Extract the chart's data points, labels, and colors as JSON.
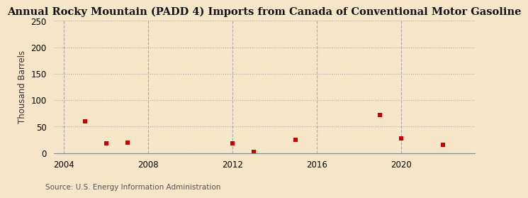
{
  "title": "Annual Rocky Mountain (PADD 4) Imports from Canada of Conventional Motor Gasoline",
  "ylabel": "Thousand Barrels",
  "source": "Source: U.S. Energy Information Administration",
  "background_color": "#f5e6c8",
  "plot_bg_color": "#f5e6c8",
  "data_points": [
    {
      "year": 2005,
      "value": 60
    },
    {
      "year": 2006,
      "value": 18
    },
    {
      "year": 2007,
      "value": 20
    },
    {
      "year": 2012,
      "value": 18
    },
    {
      "year": 2013,
      "value": 2
    },
    {
      "year": 2015,
      "value": 25
    },
    {
      "year": 2019,
      "value": 72
    },
    {
      "year": 2020,
      "value": 27
    },
    {
      "year": 2022,
      "value": 15
    }
  ],
  "marker_color": "#cc0000",
  "marker_size": 4,
  "xlim": [
    2003.5,
    2023.5
  ],
  "ylim": [
    0,
    250
  ],
  "yticks": [
    0,
    50,
    100,
    150,
    200,
    250
  ],
  "xticks": [
    2004,
    2008,
    2012,
    2016,
    2020
  ],
  "grid_color": "#aaaaaa",
  "title_fontsize": 10.5,
  "label_fontsize": 8.5,
  "tick_fontsize": 8.5,
  "source_fontsize": 7.5
}
